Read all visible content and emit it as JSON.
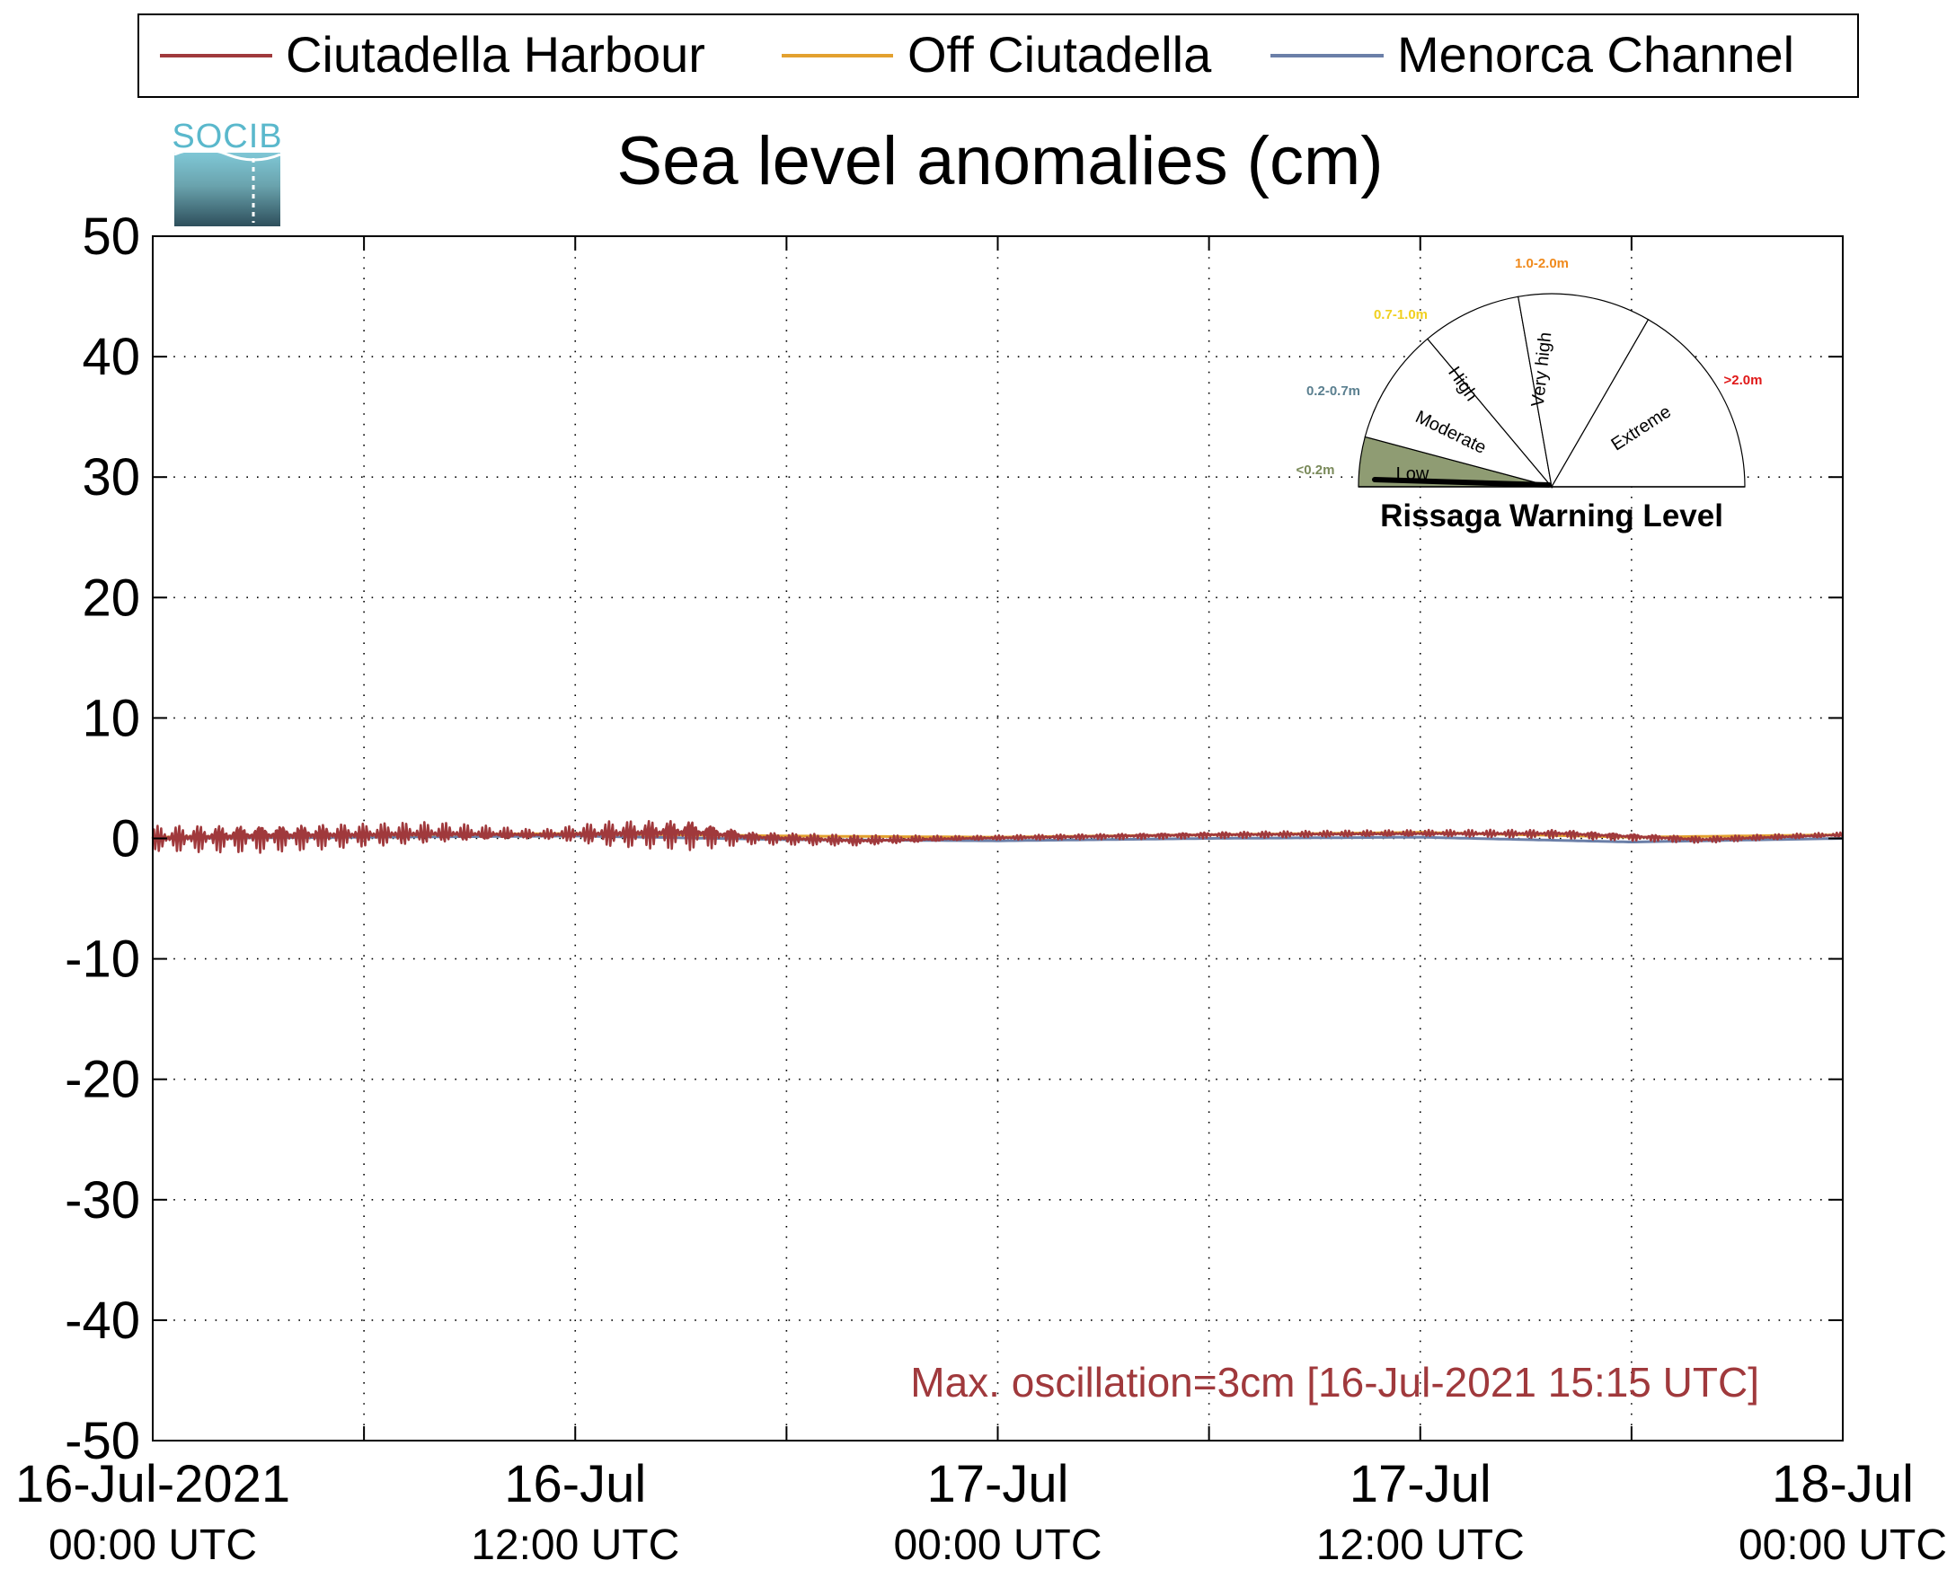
{
  "chart_data": {
    "type": "line",
    "title": "Sea level anomalies (cm)",
    "ylim": [
      -50,
      50
    ],
    "yticks": [
      50,
      40,
      30,
      20,
      10,
      0,
      -10,
      -20,
      -30,
      -40,
      -50
    ],
    "xlim": [
      "2021-07-16T00:00Z",
      "2021-07-18T00:00Z"
    ],
    "x_tick_hours": [
      0,
      12,
      24,
      36,
      48
    ],
    "x_tick_labels": [
      {
        "date": "16-Jul-2021",
        "time": "00:00 UTC"
      },
      {
        "date": "16-Jul",
        "time": "12:00 UTC"
      },
      {
        "date": "17-Jul",
        "time": "00:00 UTC"
      },
      {
        "date": "17-Jul",
        "time": "12:00 UTC"
      },
      {
        "date": "18-Jul",
        "time": "00:00 UTC"
      }
    ],
    "grid": true,
    "legend_position": "top",
    "series": [
      {
        "name": "Ciutadella Harbour",
        "color": "#a0393c",
        "x": [
          "2021-07-16T00:00Z",
          "2021-07-16T03:00Z",
          "2021-07-16T06:00Z",
          "2021-07-16T08:00Z",
          "2021-07-16T11:00Z",
          "2021-07-16T13:00Z",
          "2021-07-16T15:15Z",
          "2021-07-16T17:00Z",
          "2021-07-16T20:00Z",
          "2021-07-16T23:00Z",
          "2021-07-17T06:00Z",
          "2021-07-17T12:00Z",
          "2021-07-17T16:00Z",
          "2021-07-17T20:00Z",
          "2021-07-18T00:00Z"
        ],
        "values": [
          0,
          0.2,
          0.3,
          0.4,
          0.3,
          0.4,
          0.5,
          0.1,
          -0.2,
          0.0,
          0.3,
          0.4,
          0.4,
          -0.1,
          0.3
        ],
        "oscillation_amplitude": [
          1.2,
          1.4,
          1.1,
          1.0,
          0.4,
          1.2,
          1.5,
          0.6,
          0.5,
          0.2,
          0.3,
          0.3,
          0.4,
          0.3,
          0.2
        ]
      },
      {
        "name": "Off Ciutadella",
        "color": "#e3a12f",
        "x": [
          "2021-07-16T00:00Z",
          "2021-07-16T06:00Z",
          "2021-07-16T12:00Z",
          "2021-07-16T18:00Z",
          "2021-07-17T00:00Z",
          "2021-07-17T06:00Z",
          "2021-07-17T12:00Z",
          "2021-07-17T18:00Z",
          "2021-07-18T00:00Z"
        ],
        "values": [
          0.1,
          0.3,
          0.4,
          0.2,
          0.1,
          0.3,
          0.5,
          0.1,
          0.3
        ]
      },
      {
        "name": "Menorca Channel",
        "color": "#6b7fa8",
        "x": [
          "2021-07-16T00:00Z",
          "2021-07-16T06:00Z",
          "2021-07-16T12:00Z",
          "2021-07-16T18:00Z",
          "2021-07-17T00:00Z",
          "2021-07-17T06:00Z",
          "2021-07-17T12:00Z",
          "2021-07-17T18:00Z",
          "2021-07-18T00:00Z"
        ],
        "values": [
          0.0,
          0.1,
          0.2,
          -0.1,
          -0.2,
          0.0,
          0.1,
          -0.3,
          0.0
        ]
      }
    ],
    "annotation": "Max. oscillation=3cm [16-Jul-2021 15:15 UTC]",
    "annotation_color": "#a0393c"
  },
  "logo": {
    "text": "SOCIB"
  },
  "gauge": {
    "title": "Rissaga Warning Level",
    "current_level": "Low",
    "levels": [
      {
        "name": "Low",
        "range": "<0.2m",
        "range_color": "#7a8a5a",
        "fill": "#8f9c73",
        "active": true
      },
      {
        "name": "Moderate",
        "range": "0.2-0.7m",
        "range_color": "#5a7f8f",
        "fill": "#ffffff",
        "active": false
      },
      {
        "name": "High",
        "range": "0.7-1.0m",
        "range_color": "#f0d020",
        "fill": "#ffffff",
        "active": false
      },
      {
        "name": "Very high",
        "range": "1.0-2.0m",
        "range_color": "#f08a1c",
        "fill": "#ffffff",
        "active": false
      },
      {
        "name": "Extreme",
        "range": ">2.0m",
        "range_color": "#e01818",
        "fill": "#ffffff",
        "active": false
      }
    ]
  }
}
